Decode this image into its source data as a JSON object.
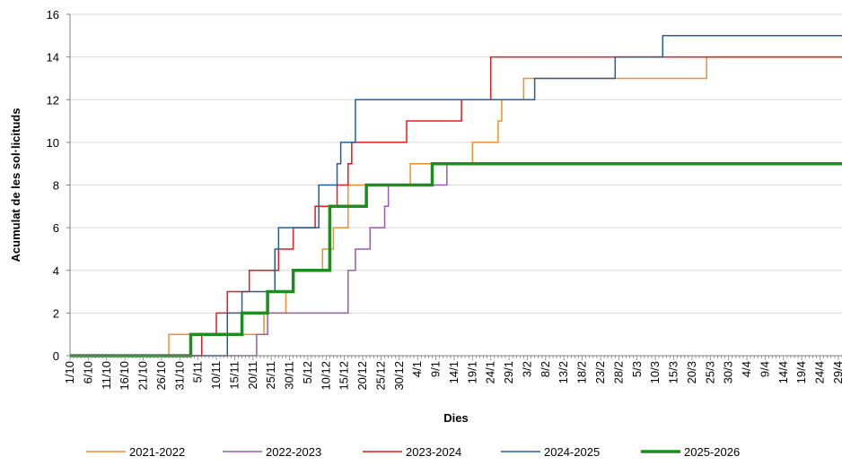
{
  "chart_data": {
    "type": "line",
    "title": "",
    "xlabel": "Dies",
    "ylabel": "Acumulat de les sol·licituds",
    "ylim": [
      0,
      16
    ],
    "yticks": [
      0,
      2,
      4,
      6,
      8,
      10,
      12,
      14,
      16
    ],
    "x_range_days": [
      0,
      211
    ],
    "x_tick_labels": [
      "1/10",
      "6/10",
      "11/10",
      "16/10",
      "21/10",
      "26/10",
      "31/10",
      "5/11",
      "10/11",
      "15/11",
      "20/11",
      "25/11",
      "30/11",
      "5/12",
      "10/12",
      "15/12",
      "20/12",
      "25/12",
      "30/12",
      "4/1",
      "9/1",
      "14/1",
      "19/1",
      "24/1",
      "29/1",
      "3/2",
      "8/2",
      "13/2",
      "18/2",
      "23/2",
      "28/2",
      "5/3",
      "10/3",
      "15/3",
      "20/3",
      "25/3",
      "30/3",
      "4/4",
      "9/4",
      "14/4",
      "19/4",
      "24/4",
      "29/4"
    ],
    "grid": "horizontal",
    "legend_position": "bottom",
    "series": [
      {
        "name": "2021-2022",
        "color": "#f28e2b",
        "width": 1.5,
        "points": [
          [
            0,
            0
          ],
          [
            27,
            0
          ],
          [
            27,
            1
          ],
          [
            53,
            1
          ],
          [
            53,
            2
          ],
          [
            59,
            2
          ],
          [
            59,
            3
          ],
          [
            61,
            3
          ],
          [
            61,
            4
          ],
          [
            69,
            4
          ],
          [
            69,
            5
          ],
          [
            72,
            5
          ],
          [
            72,
            6
          ],
          [
            76,
            6
          ],
          [
            76,
            8
          ],
          [
            93,
            8
          ],
          [
            93,
            9
          ],
          [
            110,
            9
          ],
          [
            110,
            10
          ],
          [
            117,
            10
          ],
          [
            117,
            11
          ],
          [
            118,
            11
          ],
          [
            118,
            12
          ],
          [
            124,
            12
          ],
          [
            124,
            13
          ],
          [
            174,
            13
          ],
          [
            174,
            14
          ],
          [
            211,
            14
          ]
        ]
      },
      {
        "name": "2022-2023",
        "color": "#9b59b6",
        "width": 1.5,
        "points": [
          [
            0,
            0
          ],
          [
            51,
            0
          ],
          [
            51,
            1
          ],
          [
            54,
            1
          ],
          [
            54,
            2
          ],
          [
            76,
            2
          ],
          [
            76,
            4
          ],
          [
            78,
            4
          ],
          [
            78,
            5
          ],
          [
            82,
            5
          ],
          [
            82,
            6
          ],
          [
            86,
            6
          ],
          [
            86,
            7
          ],
          [
            87,
            7
          ],
          [
            87,
            8
          ],
          [
            103,
            8
          ],
          [
            103,
            9
          ],
          [
            211,
            9
          ]
        ]
      },
      {
        "name": "2023-2024",
        "color": "#e41a1c",
        "width": 1.5,
        "points": [
          [
            0,
            0
          ],
          [
            36,
            0
          ],
          [
            36,
            1
          ],
          [
            40,
            1
          ],
          [
            40,
            2
          ],
          [
            43,
            2
          ],
          [
            43,
            3
          ],
          [
            49,
            3
          ],
          [
            49,
            4
          ],
          [
            57,
            4
          ],
          [
            57,
            5
          ],
          [
            61,
            5
          ],
          [
            61,
            6
          ],
          [
            67,
            6
          ],
          [
            67,
            7
          ],
          [
            73,
            7
          ],
          [
            73,
            8
          ],
          [
            76,
            8
          ],
          [
            76,
            9
          ],
          [
            77,
            9
          ],
          [
            77,
            10
          ],
          [
            92,
            10
          ],
          [
            92,
            11
          ],
          [
            107,
            11
          ],
          [
            107,
            12
          ],
          [
            115,
            12
          ],
          [
            115,
            14
          ],
          [
            211,
            14
          ]
        ]
      },
      {
        "name": "2024-2025",
        "color": "#1f5fa0",
        "width": 1.5,
        "points": [
          [
            0,
            0
          ],
          [
            43,
            0
          ],
          [
            43,
            2
          ],
          [
            47,
            2
          ],
          [
            47,
            3
          ],
          [
            56,
            3
          ],
          [
            56,
            5
          ],
          [
            57,
            5
          ],
          [
            57,
            6
          ],
          [
            68,
            6
          ],
          [
            68,
            8
          ],
          [
            73,
            8
          ],
          [
            73,
            9
          ],
          [
            74,
            9
          ],
          [
            74,
            10
          ],
          [
            78,
            10
          ],
          [
            78,
            12
          ],
          [
            127,
            12
          ],
          [
            127,
            13
          ],
          [
            149,
            13
          ],
          [
            149,
            14
          ],
          [
            162,
            14
          ],
          [
            162,
            15
          ],
          [
            211,
            15
          ]
        ]
      },
      {
        "name": "2025-2026",
        "color": "#1e8c1e",
        "width": 3.5,
        "points": [
          [
            0,
            0
          ],
          [
            33,
            0
          ],
          [
            33,
            1
          ],
          [
            47,
            1
          ],
          [
            47,
            2
          ],
          [
            54,
            2
          ],
          [
            54,
            3
          ],
          [
            61,
            3
          ],
          [
            61,
            4
          ],
          [
            71,
            4
          ],
          [
            71,
            7
          ],
          [
            81,
            7
          ],
          [
            81,
            8
          ],
          [
            99,
            8
          ],
          [
            99,
            9
          ],
          [
            211,
            9
          ]
        ]
      }
    ]
  }
}
